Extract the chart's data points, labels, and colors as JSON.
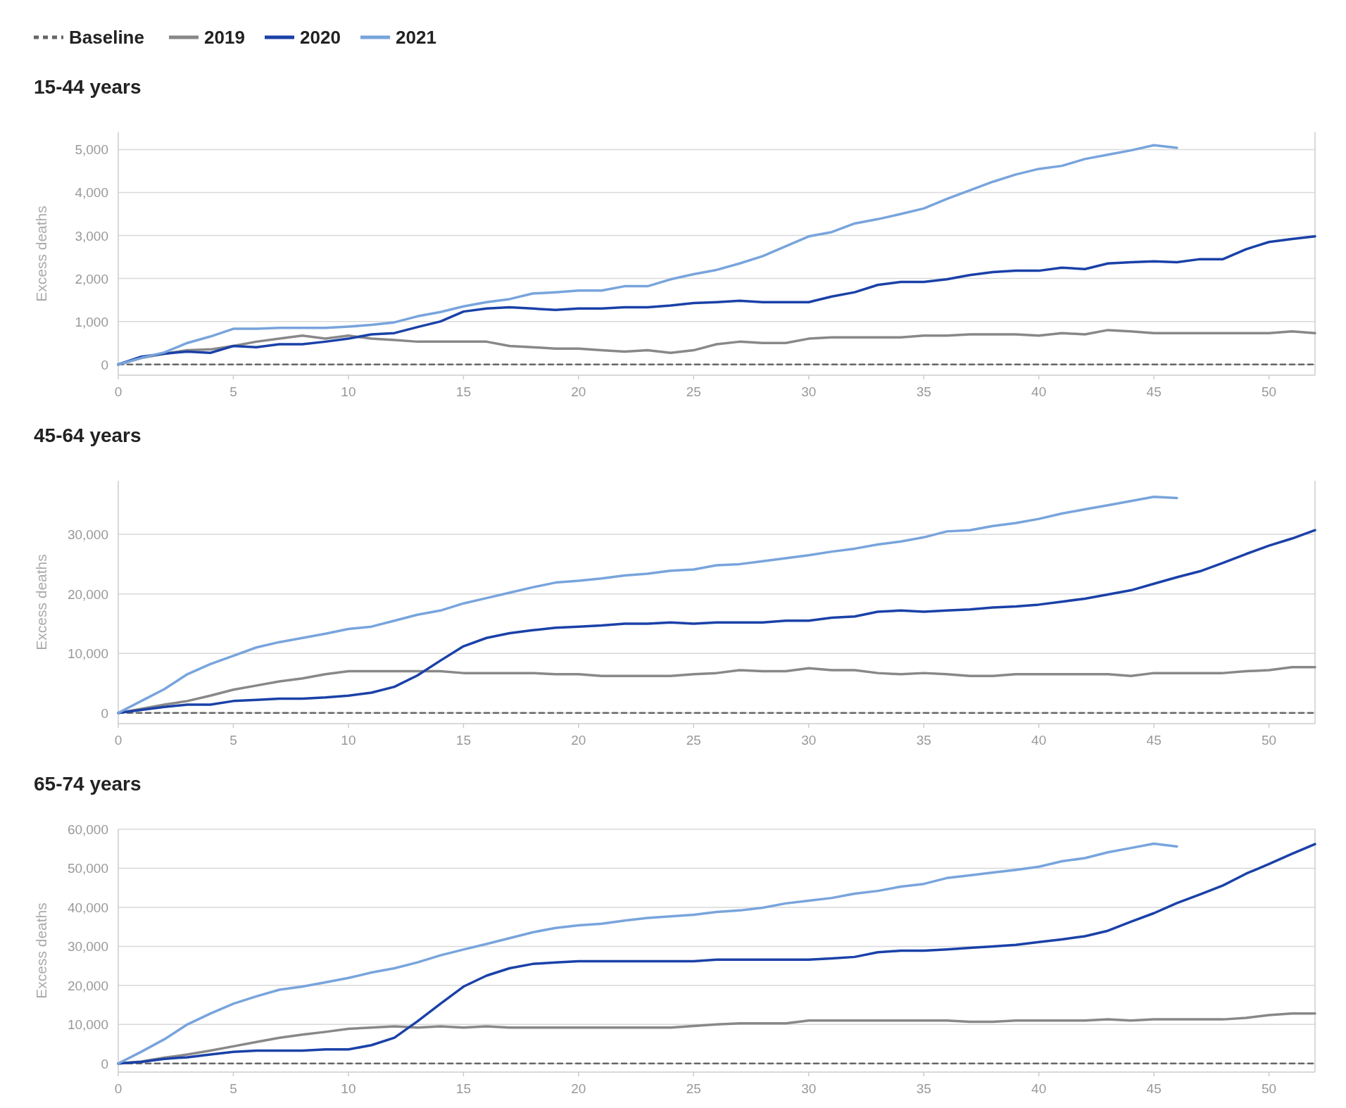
{
  "chart_data": [
    {
      "type": "line",
      "title": "15-44 years",
      "ylabel": "Excess deaths",
      "legend": "top left",
      "grid": "y",
      "xlim": [
        0,
        52
      ],
      "xticks": [
        0,
        5,
        10,
        15,
        20,
        25,
        30,
        35,
        40,
        45,
        50
      ],
      "ylim": [
        -250,
        5400
      ],
      "yticks": [
        {
          "value": 0,
          "label": "0"
        },
        {
          "value": 1000,
          "label": "1,000"
        },
        {
          "value": 2000,
          "label": "2,000"
        },
        {
          "value": 3000,
          "label": "3,000"
        },
        {
          "value": 4000,
          "label": "4,000"
        },
        {
          "value": 5000,
          "label": "5,000"
        }
      ],
      "series": [
        {
          "name": "Baseline",
          "color": "#666666",
          "line_style": "dashed",
          "x": [
            0,
            52
          ],
          "values": [
            0,
            0
          ]
        },
        {
          "name": "2019",
          "color": "#888888",
          "x": [
            0,
            1,
            2,
            3,
            4,
            5,
            6,
            7,
            8,
            9,
            10,
            11,
            12,
            13,
            14,
            15,
            16,
            17,
            18,
            19,
            20,
            21,
            22,
            23,
            24,
            25,
            26,
            27,
            28,
            29,
            30,
            31,
            32,
            33,
            34,
            35,
            36,
            37,
            38,
            39,
            40,
            41,
            42,
            43,
            44,
            45,
            46,
            47,
            48,
            49,
            50,
            51,
            52
          ],
          "values": [
            0,
            150,
            250,
            330,
            350,
            430,
            530,
            600,
            670,
            600,
            670,
            600,
            570,
            530,
            530,
            530,
            530,
            430,
            400,
            370,
            370,
            330,
            300,
            330,
            270,
            330,
            470,
            530,
            500,
            500,
            600,
            630,
            630,
            630,
            630,
            670,
            670,
            700,
            700,
            700,
            670,
            730,
            700,
            800,
            770,
            730,
            730,
            730,
            730,
            730,
            730,
            770,
            730
          ]
        },
        {
          "name": "2020",
          "color": "#1a41a8",
          "x": [
            0,
            1,
            2,
            3,
            4,
            5,
            6,
            7,
            8,
            9,
            10,
            11,
            12,
            13,
            14,
            15,
            16,
            17,
            18,
            19,
            20,
            21,
            22,
            23,
            24,
            25,
            26,
            27,
            28,
            29,
            30,
            31,
            32,
            33,
            34,
            35,
            36,
            37,
            38,
            39,
            40,
            41,
            42,
            43,
            44,
            45,
            46,
            47,
            48,
            49,
            50,
            51,
            52
          ],
          "values": [
            0,
            180,
            250,
            300,
            270,
            430,
            400,
            470,
            470,
            530,
            600,
            700,
            730,
            870,
            1000,
            1230,
            1300,
            1330,
            1300,
            1270,
            1300,
            1300,
            1330,
            1330,
            1370,
            1430,
            1450,
            1480,
            1450,
            1450,
            1450,
            1580,
            1680,
            1850,
            1920,
            1920,
            1980,
            2080,
            2150,
            2180,
            2180,
            2250,
            2220,
            2350,
            2380,
            2400,
            2380,
            2450,
            2450,
            2680,
            2850,
            2920,
            2980
          ]
        },
        {
          "name": "2021",
          "color": "#78a4dc",
          "x": [
            0,
            1,
            2,
            3,
            4,
            5,
            6,
            7,
            8,
            9,
            10,
            11,
            12,
            13,
            14,
            15,
            16,
            17,
            18,
            19,
            20,
            21,
            22,
            23,
            24,
            25,
            26,
            27,
            28,
            29,
            30,
            31,
            32,
            33,
            34,
            35,
            36,
            37,
            38,
            39,
            40,
            41,
            42,
            43,
            44,
            45,
            46
          ],
          "values": [
            0,
            150,
            280,
            500,
            650,
            830,
            830,
            850,
            850,
            850,
            880,
            920,
            980,
            1120,
            1220,
            1350,
            1450,
            1520,
            1650,
            1680,
            1720,
            1720,
            1820,
            1820,
            1980,
            2100,
            2200,
            2350,
            2520,
            2750,
            2980,
            3080,
            3280,
            3380,
            3500,
            3630,
            3850,
            4050,
            4250,
            4420,
            4550,
            4620,
            4780,
            4880,
            4980,
            5100,
            5040
          ]
        }
      ]
    },
    {
      "type": "line",
      "title": "45-64 years",
      "ylabel": "Excess deaths",
      "grid": "y",
      "xlim": [
        0,
        52
      ],
      "xticks": [
        0,
        5,
        10,
        15,
        20,
        25,
        30,
        35,
        40,
        45,
        50
      ],
      "ylim": [
        -1800,
        39000
      ],
      "yticks": [
        {
          "value": 0,
          "label": "0"
        },
        {
          "value": 10000,
          "label": "10,000"
        },
        {
          "value": 20000,
          "label": "20,000"
        },
        {
          "value": 30000,
          "label": "30,000"
        }
      ],
      "series": [
        {
          "color": "#666666",
          "line_style": "dashed",
          "x": [
            0,
            52
          ],
          "values": [
            0,
            0
          ]
        },
        {
          "color": "#888888",
          "x": [
            0,
            1,
            2,
            3,
            4,
            5,
            6,
            7,
            8,
            9,
            10,
            11,
            12,
            13,
            14,
            15,
            16,
            17,
            18,
            19,
            20,
            21,
            22,
            23,
            24,
            25,
            26,
            27,
            28,
            29,
            30,
            31,
            32,
            33,
            34,
            35,
            36,
            37,
            38,
            39,
            40,
            41,
            42,
            43,
            44,
            45,
            46,
            47,
            48,
            49,
            50,
            51,
            52
          ],
          "values": [
            0,
            700,
            1400,
            2000,
            2900,
            3900,
            4600,
            5300,
            5800,
            6500,
            7000,
            7000,
            7000,
            7000,
            7000,
            6700,
            6700,
            6700,
            6700,
            6500,
            6500,
            6200,
            6200,
            6200,
            6200,
            6500,
            6700,
            7200,
            7000,
            7000,
            7500,
            7200,
            7200,
            6700,
            6500,
            6700,
            6500,
            6200,
            6200,
            6500,
            6500,
            6500,
            6500,
            6500,
            6200,
            6700,
            6700,
            6700,
            6700,
            7000,
            7200,
            7700,
            7700
          ]
        },
        {
          "color": "#1a41a8",
          "x": [
            0,
            1,
            2,
            3,
            4,
            5,
            6,
            7,
            8,
            9,
            10,
            11,
            12,
            13,
            14,
            15,
            16,
            17,
            18,
            19,
            20,
            21,
            22,
            23,
            24,
            25,
            26,
            27,
            28,
            29,
            30,
            31,
            32,
            33,
            34,
            35,
            36,
            37,
            38,
            39,
            40,
            41,
            42,
            43,
            44,
            45,
            46,
            47,
            48,
            49,
            50,
            51,
            52
          ],
          "values": [
            0,
            500,
            1000,
            1400,
            1400,
            2000,
            2200,
            2400,
            2400,
            2600,
            2900,
            3400,
            4400,
            6300,
            8800,
            11200,
            12600,
            13400,
            13900,
            14300,
            14500,
            14700,
            15000,
            15000,
            15200,
            15000,
            15200,
            15200,
            15200,
            15500,
            15500,
            16000,
            16200,
            17000,
            17200,
            17000,
            17200,
            17400,
            17700,
            17900,
            18200,
            18700,
            19200,
            19900,
            20600,
            21700,
            22800,
            23800,
            25200,
            26700,
            28100,
            29300,
            30700
          ]
        },
        {
          "color": "#78a4dc",
          "x": [
            0,
            1,
            2,
            3,
            4,
            5,
            6,
            7,
            8,
            9,
            10,
            11,
            12,
            13,
            14,
            15,
            16,
            17,
            18,
            19,
            20,
            21,
            22,
            23,
            24,
            25,
            26,
            27,
            28,
            29,
            30,
            31,
            32,
            33,
            34,
            35,
            36,
            37,
            38,
            39,
            40,
            41,
            42,
            43,
            44,
            45,
            46
          ],
          "values": [
            0,
            2000,
            4000,
            6500,
            8200,
            9600,
            11000,
            11900,
            12600,
            13300,
            14100,
            14500,
            15500,
            16500,
            17200,
            18400,
            19300,
            20200,
            21100,
            21900,
            22200,
            22600,
            23100,
            23400,
            23900,
            24100,
            24800,
            25000,
            25500,
            26000,
            26500,
            27100,
            27600,
            28300,
            28800,
            29500,
            30500,
            30700,
            31400,
            31900,
            32600,
            33500,
            34200,
            34900,
            35600,
            36300,
            36100
          ]
        }
      ]
    },
    {
      "type": "line",
      "title": "65-74 years",
      "ylabel": "Excess deaths",
      "grid": "y",
      "xlim": [
        0,
        52
      ],
      "xticks": [
        0,
        5,
        10,
        15,
        20,
        25,
        30,
        35,
        40,
        45,
        50
      ],
      "ylim": [
        -2200,
        60000
      ],
      "yticks": [
        {
          "value": 0,
          "label": "0"
        },
        {
          "value": 10000,
          "label": "10,000"
        },
        {
          "value": 20000,
          "label": "20,000"
        },
        {
          "value": 30000,
          "label": "30,000"
        },
        {
          "value": 40000,
          "label": "40,000"
        },
        {
          "value": 50000,
          "label": "50,000"
        },
        {
          "value": 60000,
          "label": "60,000"
        }
      ],
      "series": [
        {
          "color": "#666666",
          "line_style": "dashed",
          "x": [
            0,
            52
          ],
          "values": [
            0,
            0
          ]
        },
        {
          "color": "#888888",
          "x": [
            0,
            1,
            2,
            3,
            4,
            5,
            6,
            7,
            8,
            9,
            10,
            11,
            12,
            13,
            14,
            15,
            16,
            17,
            18,
            19,
            20,
            21,
            22,
            23,
            24,
            25,
            26,
            27,
            28,
            29,
            30,
            31,
            32,
            33,
            34,
            35,
            36,
            37,
            38,
            39,
            40,
            41,
            42,
            43,
            44,
            45,
            46,
            47,
            48,
            49,
            50,
            51,
            52
          ],
          "values": [
            0,
            500,
            1500,
            2300,
            3300,
            4400,
            5500,
            6600,
            7400,
            8100,
            8900,
            9200,
            9500,
            9200,
            9500,
            9200,
            9500,
            9200,
            9200,
            9200,
            9200,
            9200,
            9200,
            9200,
            9200,
            9600,
            10000,
            10300,
            10300,
            10300,
            11000,
            11000,
            11000,
            11000,
            11000,
            11000,
            11000,
            10700,
            10700,
            11000,
            11000,
            11000,
            11000,
            11300,
            11000,
            11300,
            11300,
            11300,
            11300,
            11700,
            12400,
            12800,
            12800
          ]
        },
        {
          "color": "#1a41a8",
          "x": [
            0,
            1,
            2,
            3,
            4,
            5,
            6,
            7,
            8,
            9,
            10,
            11,
            12,
            13,
            14,
            15,
            16,
            17,
            18,
            19,
            20,
            21,
            22,
            23,
            24,
            25,
            26,
            27,
            28,
            29,
            30,
            31,
            32,
            33,
            34,
            35,
            36,
            37,
            38,
            39,
            40,
            41,
            42,
            43,
            44,
            45,
            46,
            47,
            48,
            49,
            50,
            51,
            52
          ],
          "values": [
            0,
            400,
            1200,
            1600,
            2300,
            3000,
            3300,
            3300,
            3300,
            3600,
            3600,
            4700,
            6600,
            10800,
            15300,
            19700,
            22500,
            24400,
            25500,
            25900,
            26200,
            26200,
            26200,
            26200,
            26200,
            26200,
            26600,
            26600,
            26600,
            26600,
            26600,
            26900,
            27300,
            28500,
            28900,
            28900,
            29200,
            29600,
            30000,
            30400,
            31100,
            31800,
            32600,
            34000,
            36300,
            38500,
            41100,
            43300,
            45600,
            48600,
            51100,
            53700,
            56200
          ]
        },
        {
          "color": "#78a4dc",
          "x": [
            0,
            1,
            2,
            3,
            4,
            5,
            6,
            7,
            8,
            9,
            10,
            11,
            12,
            13,
            14,
            15,
            16,
            17,
            18,
            19,
            20,
            21,
            22,
            23,
            24,
            25,
            26,
            27,
            28,
            29,
            30,
            31,
            32,
            33,
            34,
            35,
            36,
            37,
            38,
            39,
            40,
            41,
            42,
            43,
            44,
            45,
            46
          ],
          "values": [
            0,
            3000,
            6200,
            10000,
            12800,
            15300,
            17200,
            18900,
            19700,
            20800,
            21900,
            23300,
            24400,
            25900,
            27700,
            29200,
            30600,
            32100,
            33600,
            34700,
            35400,
            35800,
            36600,
            37300,
            37700,
            38100,
            38800,
            39200,
            39900,
            41000,
            41700,
            42400,
            43500,
            44200,
            45300,
            46000,
            47500,
            48200,
            48900,
            49600,
            50400,
            51800,
            52600,
            54100,
            55200,
            56300,
            55600
          ]
        }
      ]
    }
  ]
}
